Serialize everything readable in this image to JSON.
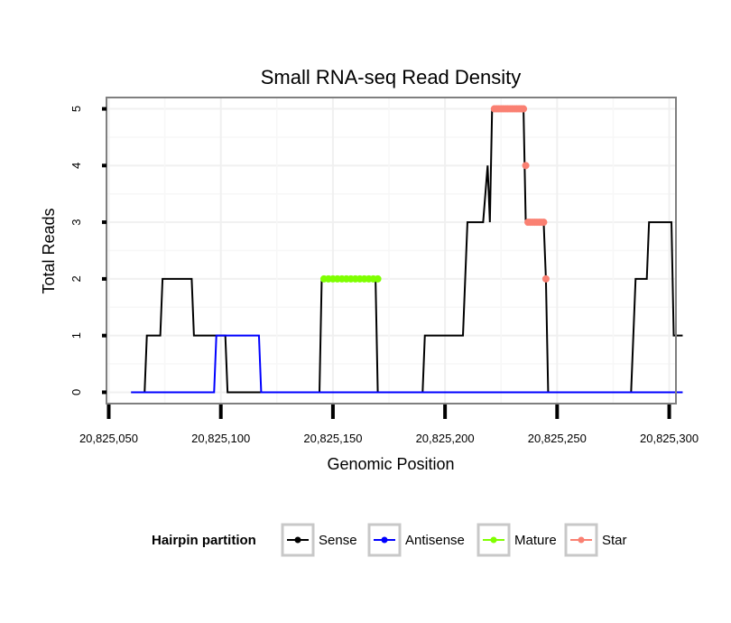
{
  "chart_data": {
    "type": "line",
    "title": "Small RNA-seq Read Density",
    "xlabel": "Genomic Position",
    "ylabel": "Total Reads",
    "xlim": [
      20825049,
      20825303
    ],
    "ylim": [
      -0.2,
      5.2
    ],
    "xticks": [
      20825050,
      20825100,
      20825150,
      20825200,
      20825250,
      20825300
    ],
    "xtick_labels": [
      "20,825,050",
      "20,825,100",
      "20,825,150",
      "20,825,200",
      "20,825,250",
      "20,825,300"
    ],
    "yticks": [
      0,
      1,
      2,
      3,
      4,
      5
    ],
    "ytick_labels": [
      "0",
      "1",
      "2",
      "3",
      "4",
      "5"
    ],
    "grid": true,
    "legend": {
      "title": "Hairpin partition",
      "position": "bottom"
    },
    "series": [
      {
        "name": "Sense",
        "color": "#000000",
        "points": [
          [
            20825060,
            0
          ],
          [
            20825066,
            0
          ],
          [
            20825067,
            1
          ],
          [
            20825073,
            1
          ],
          [
            20825074,
            2
          ],
          [
            20825087,
            2
          ],
          [
            20825088,
            1
          ],
          [
            20825102,
            1
          ],
          [
            20825103,
            0
          ],
          [
            20825144,
            0
          ],
          [
            20825145,
            2
          ],
          [
            20825169,
            2
          ],
          [
            20825170,
            0
          ],
          [
            20825190,
            0
          ],
          [
            20825191,
            1
          ],
          [
            20825208,
            1
          ],
          [
            20825209,
            2
          ],
          [
            20825210,
            3
          ],
          [
            20825217,
            3
          ],
          [
            20825219,
            4
          ],
          [
            20825220,
            3
          ],
          [
            20825221,
            5
          ],
          [
            20825235,
            5
          ],
          [
            20825236,
            3
          ],
          [
            20825244,
            3
          ],
          [
            20825245,
            2
          ],
          [
            20825246,
            0
          ],
          [
            20825283,
            0
          ],
          [
            20825285,
            2
          ],
          [
            20825290,
            2
          ],
          [
            20825291,
            3
          ],
          [
            20825301,
            3
          ],
          [
            20825302,
            1
          ],
          [
            20825306,
            1
          ]
        ]
      },
      {
        "name": "Antisense",
        "color": "#0000ff",
        "points": [
          [
            20825060,
            0
          ],
          [
            20825097,
            0
          ],
          [
            20825098,
            1
          ],
          [
            20825117,
            1
          ],
          [
            20825118,
            0
          ],
          [
            20825306,
            0
          ]
        ]
      },
      {
        "name": "Mature",
        "color": "#7fff00",
        "points": [
          [
            20825146,
            2
          ],
          [
            20825148,
            2
          ],
          [
            20825150,
            2
          ],
          [
            20825152,
            2
          ],
          [
            20825154,
            2
          ],
          [
            20825156,
            2
          ],
          [
            20825158,
            2
          ],
          [
            20825160,
            2
          ],
          [
            20825162,
            2
          ],
          [
            20825164,
            2
          ],
          [
            20825166,
            2
          ],
          [
            20825168,
            2
          ],
          [
            20825170,
            2
          ]
        ]
      },
      {
        "name": "Star",
        "color": "#fa8072",
        "points": [
          [
            20825222,
            5
          ],
          [
            20825223,
            5
          ],
          [
            20825224,
            5
          ],
          [
            20825225,
            5
          ],
          [
            20825226,
            5
          ],
          [
            20825227,
            5
          ],
          [
            20825228,
            5
          ],
          [
            20825229,
            5
          ],
          [
            20825230,
            5
          ],
          [
            20825231,
            5
          ],
          [
            20825232,
            5
          ],
          [
            20825233,
            5
          ],
          [
            20825234,
            5
          ],
          [
            20825235,
            5
          ],
          [
            20825236,
            4
          ],
          [
            20825237,
            3
          ],
          [
            20825238,
            3
          ],
          [
            20825239,
            3
          ],
          [
            20825240,
            3
          ],
          [
            20825241,
            3
          ],
          [
            20825242,
            3
          ],
          [
            20825243,
            3
          ],
          [
            20825244,
            3
          ],
          [
            20825245,
            2
          ]
        ]
      }
    ]
  }
}
